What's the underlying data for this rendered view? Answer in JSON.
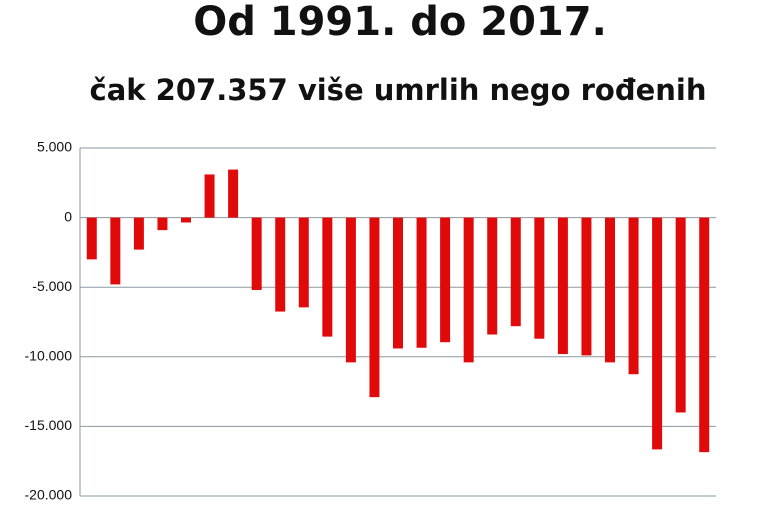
{
  "chart_data": {
    "type": "bar",
    "title": "Od 1991. do 2017.",
    "subtitle": "čak 207.357 više umrlih nego rođenih",
    "values": [
      -3000,
      -4800,
      -2300,
      -900,
      -350,
      3100,
      3450,
      -5200,
      -6750,
      -6450,
      -8550,
      -10400,
      -12900,
      -9400,
      -9350,
      -8950,
      -10400,
      -8400,
      -7800,
      -8700,
      -9800,
      -9900,
      -10400,
      -11250,
      -16650,
      -14000,
      -16850
    ],
    "color": "#e10a0a",
    "ylim": [
      -20000,
      5000
    ],
    "yticks": [
      {
        "value": 5000,
        "label": "5.000"
      },
      0,
      {
        "value": -5000,
        "label": "-5.000"
      },
      {
        "value": -10000,
        "label": "-10.000"
      },
      {
        "value": -15000,
        "label": "-15.000"
      },
      {
        "value": -20000,
        "label": "-20.000"
      }
    ],
    "grid": true
  }
}
